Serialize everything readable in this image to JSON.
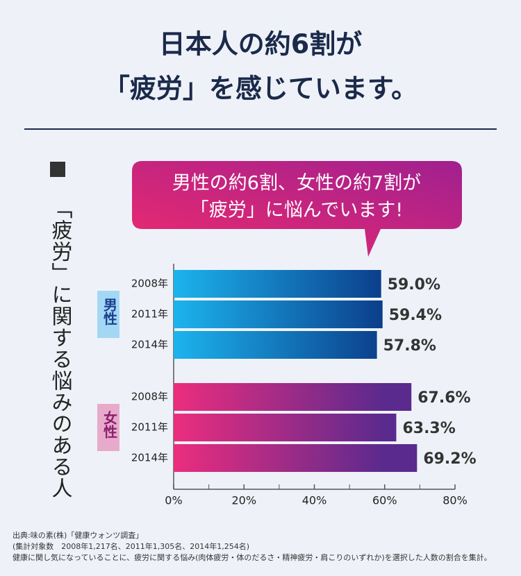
{
  "chart_data": {
    "type": "bar",
    "orientation": "horizontal",
    "title": [
      "日本人の約6割が",
      "「疲労」を感じています。"
    ],
    "callout": [
      "男性の約6割、女性の約7割が",
      "「疲労」に悩んでいます!"
    ],
    "y_label": "「疲労」に関する悩みのある人",
    "categories": [
      "2008年",
      "2011年",
      "2014年"
    ],
    "series": [
      {
        "name": "男性",
        "color": [
          "#1cb4ee",
          "#0b3d8a"
        ],
        "label_color": "#1a3f8f",
        "box_color": "#a3d8f5",
        "values": [
          59.0,
          59.4,
          57.8
        ],
        "value_labels": [
          "59.0%",
          "59.4%",
          "57.8%"
        ]
      },
      {
        "name": "女性",
        "color": [
          "#ec2d7e",
          "#5a2a8e"
        ],
        "label_color": "#8a1f6e",
        "box_color": "#e8aacb",
        "values": [
          67.6,
          63.3,
          69.2
        ],
        "value_labels": [
          "67.6%",
          "63.3%",
          "69.2%"
        ]
      }
    ],
    "xlim": [
      0,
      80
    ],
    "xticks": [
      {
        "value": 0,
        "label": "0%"
      },
      {
        "value": 20,
        "label": "20%"
      },
      {
        "value": 40,
        "label": "40%"
      },
      {
        "value": 60,
        "label": "60%"
      },
      {
        "value": 80,
        "label": "80%"
      }
    ],
    "minor_xticks": [
      10,
      30,
      50,
      70
    ],
    "notes": [
      "出典:味の素(株)「健康ウォンツ調査」",
      "(集計対象数　2008年1,217名、2011年1,305名、2014年1,254名)",
      "健康に関し気になっていることに、疲労に関する悩み(肉体疲労・体のだるさ・精神疲労・肩こりのいずれか)を選択した人数の割合を集計。"
    ]
  }
}
